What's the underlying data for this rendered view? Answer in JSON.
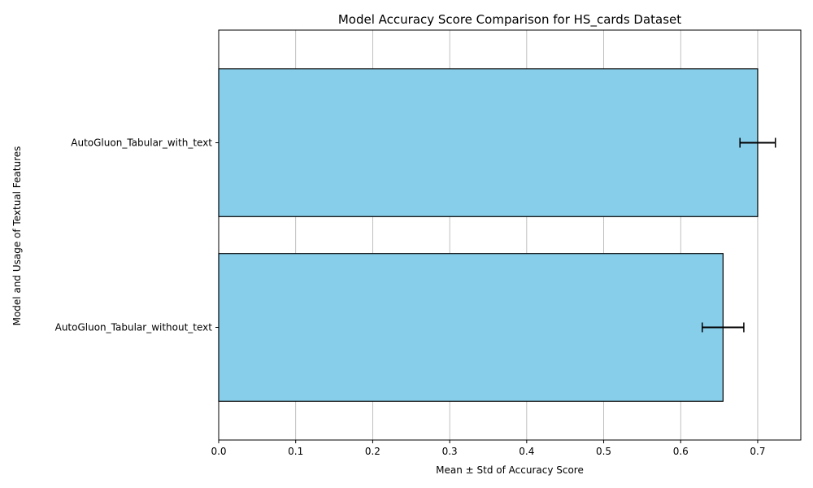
{
  "chart_data": {
    "type": "bar",
    "orientation": "horizontal",
    "title": "Model Accuracy Score Comparison for HS_cards Dataset",
    "xlabel": "Mean ± Std of Accuracy Score",
    "ylabel": "Model and Usage of Textual Features",
    "categories": [
      "AutoGluon_Tabular_with_text",
      "AutoGluon_Tabular_without_text"
    ],
    "values": [
      0.7,
      0.655
    ],
    "errors": [
      0.023,
      0.027
    ],
    "xlim": [
      0,
      0.756
    ],
    "xticks": [
      0.0,
      0.1,
      0.2,
      0.3,
      0.4,
      0.5,
      0.6,
      0.7
    ],
    "xtick_labels": [
      "0.0",
      "0.1",
      "0.2",
      "0.3",
      "0.4",
      "0.5",
      "0.6",
      "0.7"
    ],
    "grid": "x",
    "colors": {
      "bar_fill": "#87ceeb",
      "bar_edge": "#000000",
      "grid": "#b0b0b0",
      "error_bar": "#000000"
    }
  }
}
